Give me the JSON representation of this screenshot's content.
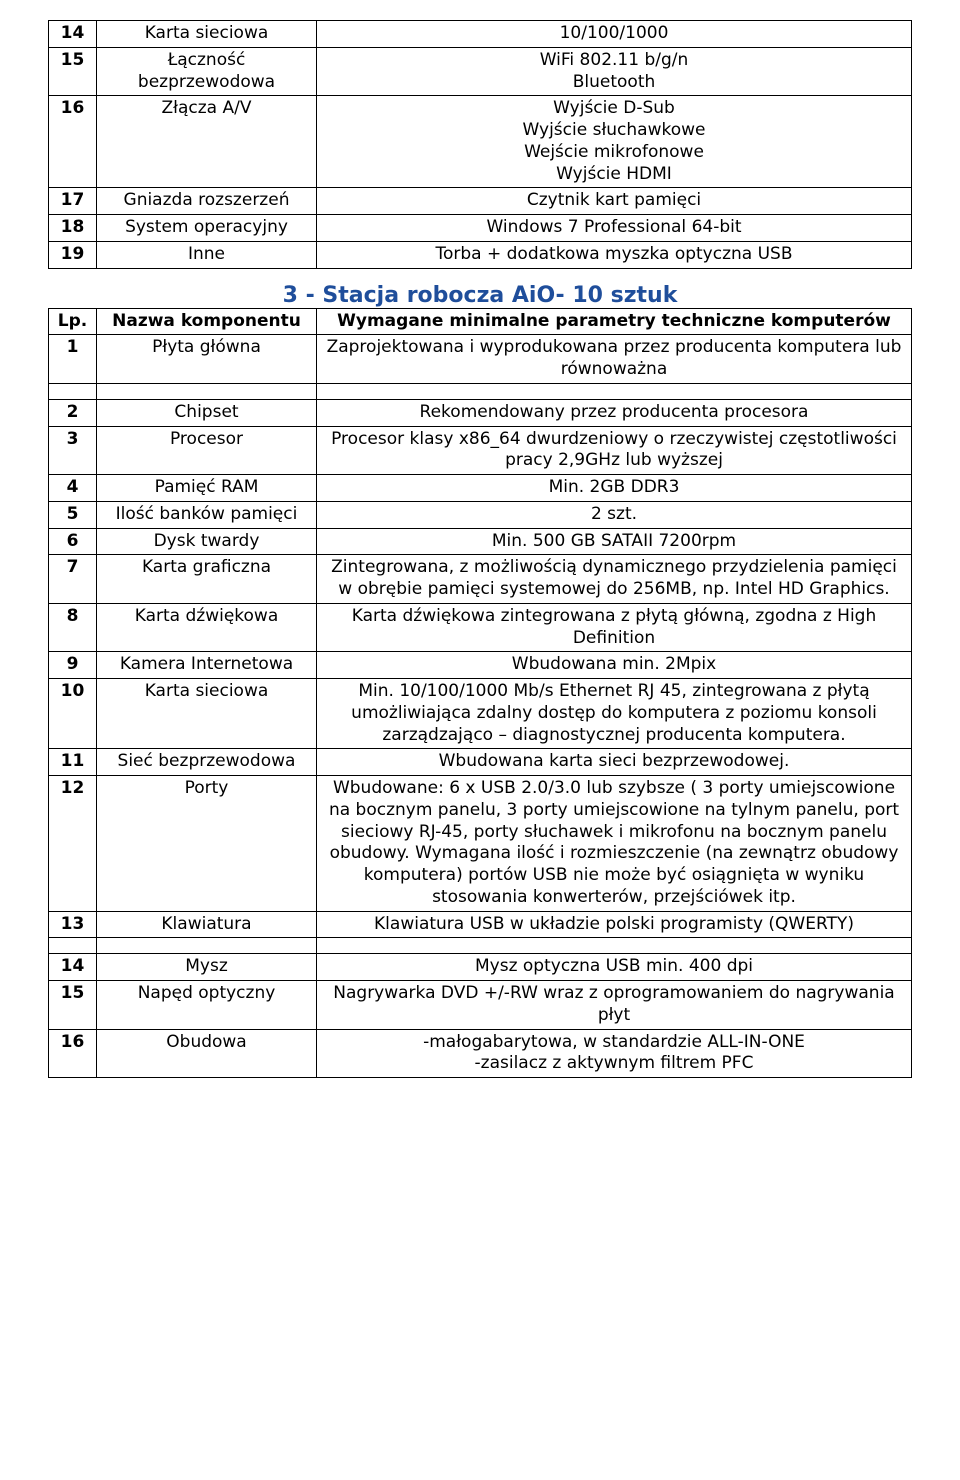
{
  "colors": {
    "text": "#000000",
    "heading": "#1f4e9b",
    "border": "#000000",
    "background": "#ffffff"
  },
  "table1": {
    "rows": [
      {
        "num": "14",
        "name": "Karta sieciowa",
        "val": "10/100/1000"
      },
      {
        "num": "15",
        "name": "Łączność bezprzewodowa",
        "val": "WiFi 802.11 b/g/n\nBluetooth"
      },
      {
        "num": "16",
        "name": "Złącza A/V",
        "val": "Wyjście D-Sub\nWyjście słuchawkowe\nWejście mikrofonowe\nWyjście HDMI"
      },
      {
        "num": "17",
        "name": "Gniazda rozszerzeń",
        "val": "Czytnik kart pamięci"
      },
      {
        "num": "18",
        "name": "System operacyjny",
        "val": "Windows 7 Professional 64-bit"
      },
      {
        "num": "19",
        "name": "Inne",
        "val": "Torba + dodatkowa myszka optyczna USB"
      }
    ]
  },
  "section_heading": "3 - Stacja robocza AiO- 10 sztuk",
  "table2": {
    "header": {
      "num": "Lp.",
      "name": "Nazwa komponentu",
      "val": "Wymagane minimalne parametry techniczne komputerów"
    },
    "rows": [
      {
        "num": "1",
        "name": "Płyta główna",
        "val": "Zaprojektowana i wyprodukowana przez producenta komputera lub równoważna"
      },
      {
        "num": "2",
        "name": "Chipset",
        "val": "Rekomendowany przez producenta procesora"
      },
      {
        "num": "3",
        "name": "Procesor",
        "val": "Procesor klasy x86_64 dwurdzeniowy o rzeczywistej częstotliwości pracy 2,9GHz lub wyższej"
      },
      {
        "num": "4",
        "name": "Pamięć RAM",
        "val": "Min. 2GB DDR3"
      },
      {
        "num": "5",
        "name": "Ilość banków pamięci",
        "val": "2 szt."
      },
      {
        "num": "6",
        "name": "Dysk twardy",
        "val": "Min. 500 GB SATAII 7200rpm"
      },
      {
        "num": "7",
        "name": "Karta graficzna",
        "val": "Zintegrowana, z możliwością dynamicznego przydzielenia pamięci w obrębie pamięci systemowej do 256MB, np. Intel HD Graphics."
      },
      {
        "num": "8",
        "name": "Karta dźwiękowa",
        "val": "Karta dźwiękowa zintegrowana z płytą główną, zgodna z High Definition"
      },
      {
        "num": "9",
        "name": "Kamera Internetowa",
        "val": "Wbudowana min. 2Mpix"
      },
      {
        "num": "10",
        "name": "Karta sieciowa",
        "val": "Min. 10/100/1000 Mb/s Ethernet RJ 45, zintegrowana z płytą umożliwiająca zdalny dostęp do komputera z poziomu konsoli zarządzająco – diagnostycznej producenta  komputera."
      },
      {
        "num": "11",
        "name": "Sieć bezprzewodowa",
        "val": "Wbudowana karta sieci bezprzewodowej."
      },
      {
        "num": "12",
        "name": "Porty",
        "val": "Wbudowane: 6 x USB 2.0/3.0 lub szybsze ( 3 porty umiejscowione na bocznym panelu, 3 porty umiejscowione na tylnym panelu, port sieciowy RJ-45, porty słuchawek i mikrofonu na  bocznym panelu obudowy. Wymagana ilość i rozmieszczenie (na zewnątrz obudowy komputera) portów USB nie może być osiągnięta w wyniku stosowania konwerterów, przejściówek itp."
      },
      {
        "num": "13",
        "name": "Klawiatura",
        "val": "Klawiatura USB w układzie polski programisty (QWERTY)"
      },
      {
        "num": "14",
        "name": "Mysz",
        "val": "Mysz optyczna USB min. 400 dpi"
      },
      {
        "num": "15",
        "name": "Napęd optyczny",
        "val": "Nagrywarka DVD +/-RW wraz z oprogramowaniem do nagrywania płyt"
      },
      {
        "num": "16",
        "name": "Obudowa",
        "val": "-małogabarytowa, w standardzie ALL-IN-ONE\n-zasilacz z aktywnym filtrem PFC"
      }
    ],
    "spacer_after_index": 0,
    "spacer_before_row_num": "14"
  }
}
